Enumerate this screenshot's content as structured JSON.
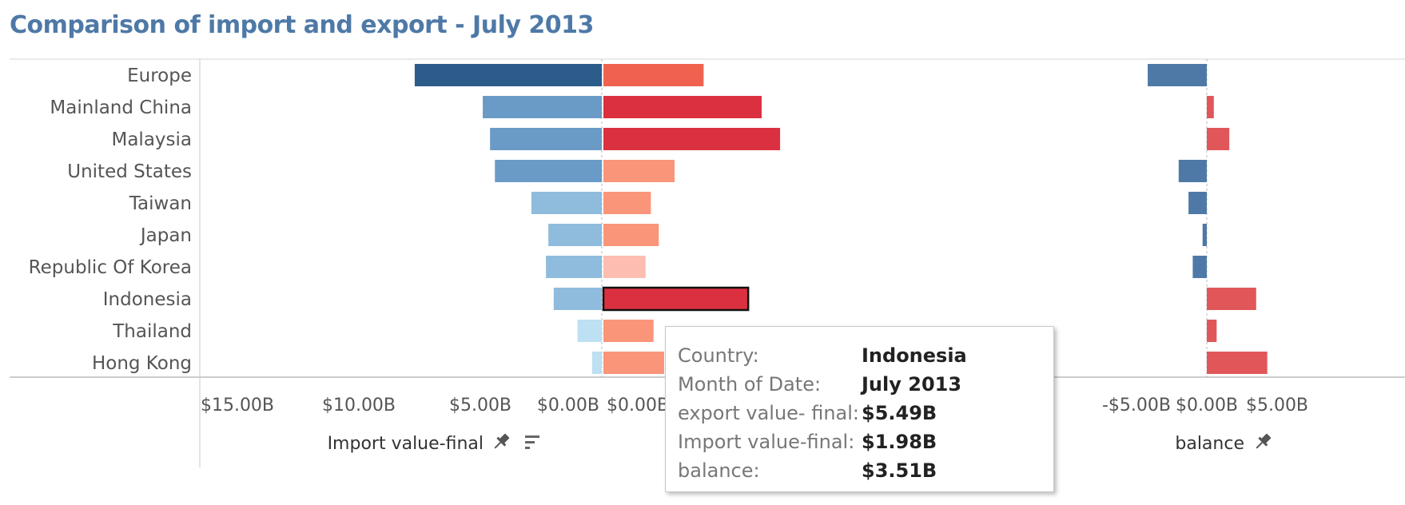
{
  "page": {
    "title": "Comparison of import and export - July 2013"
  },
  "colors": {
    "title": "#4e79a7",
    "import_scale": [
      "#bde0f2",
      "#8fbcdd",
      "#6a9bc6",
      "#2d5b8a"
    ],
    "export_scale": [
      "#fdbdb0",
      "#fa9579",
      "#f0624f",
      "#db3040"
    ],
    "balance_negative": "#4e79a7",
    "balance_positive": "#e15759",
    "highlight_border": "#111111"
  },
  "icons": {
    "pin": "pin-icon",
    "sort": "sort-icon"
  },
  "chart_data": {
    "type": "bar",
    "title": "Comparison of import and export - July 2013",
    "orientation": "horizontal",
    "categories": [
      "Europe",
      "Mainland China",
      "Malaysia",
      "United States",
      "Taiwan",
      "Japan",
      "Republic Of Korea",
      "Indonesia",
      "Thailand",
      "Hong Kong"
    ],
    "series": [
      {
        "name": "Import value-final",
        "values": [
          7.7,
          4.9,
          4.6,
          4.4,
          2.9,
          2.2,
          2.3,
          1.98,
          1.0,
          0.4
        ],
        "direction": "left"
      },
      {
        "name": "export value- final",
        "values": [
          3.8,
          6.0,
          6.7,
          2.7,
          1.8,
          2.1,
          1.6,
          5.49,
          1.9,
          2.3
        ]
      },
      {
        "name": "balance",
        "values": [
          -4.2,
          0.5,
          1.6,
          -2.0,
          -1.3,
          -0.3,
          -1.0,
          3.51,
          0.7,
          4.3
        ]
      }
    ],
    "panels": [
      {
        "key": "import",
        "axis_title": "Import value-final",
        "reversed": true,
        "xlim": [
          0,
          15
        ],
        "ticks": [
          {
            "v": 15,
            "label": "$15.00B"
          },
          {
            "v": 10,
            "label": "$10.00B"
          },
          {
            "v": 5,
            "label": "$5.00B"
          },
          {
            "v": 0,
            "label": "$0.00B"
          }
        ]
      },
      {
        "key": "export",
        "axis_title": "export value- final",
        "reversed": false,
        "xlim": [
          0,
          15
        ],
        "ticks": [
          {
            "v": 0,
            "label": "$0.00B"
          }
        ]
      },
      {
        "key": "balance",
        "axis_title": "balance",
        "reversed": false,
        "xlim": [
          -8,
          8
        ],
        "ticks": [
          {
            "v": -5,
            "label": "-$5.00B"
          },
          {
            "v": 0,
            "label": "$0.00B"
          },
          {
            "v": 5,
            "label": "$5.00B"
          }
        ]
      }
    ],
    "highlighted_category": "Indonesia",
    "units": "$B"
  },
  "tooltip": {
    "rows": [
      {
        "key": "Country:",
        "value": "Indonesia"
      },
      {
        "key": "Month of Date:",
        "value": "July 2013"
      },
      {
        "key": "export value- final:",
        "value": "$5.49B"
      },
      {
        "key": "Import value-final:",
        "value": "$1.98B"
      },
      {
        "key": "balance:",
        "value": "$3.51B"
      }
    ]
  }
}
